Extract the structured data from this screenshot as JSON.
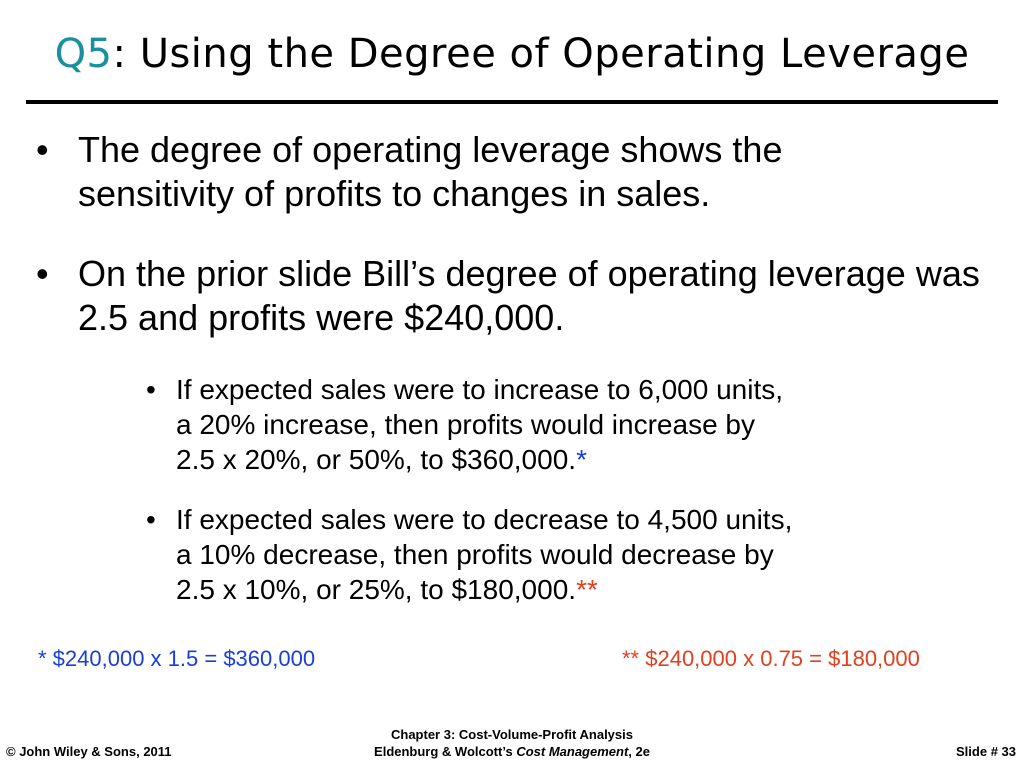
{
  "title": {
    "prefix": "Q5",
    "text": ": Using the Degree of Operating Leverage"
  },
  "bullets": [
    {
      "marker": "•",
      "text": "The degree of operating leverage shows the sensitivity of profits to changes in sales."
    },
    {
      "marker": "•",
      "text": "On the prior slide Bill’s degree of operating leverage was 2.5 and profits were $240,000."
    }
  ],
  "sub_bullets": [
    {
      "marker": "•",
      "line1": "If expected sales were to increase to 6,000 units,",
      "line2": "a 20% increase, then profits would increase by",
      "line3": "2.5 x 20%, or 50%, to $360,000.",
      "asterisk": "*"
    },
    {
      "marker": "•",
      "line1": "If expected sales were to decrease to 4,500 units,",
      "line2": "a 10% decrease, then profits would decrease by",
      "line3": "2.5 x 10%, or 25%, to $180,000.",
      "asterisk": "**"
    }
  ],
  "footnotes": {
    "left": "* $240,000 x 1.5 = $360,000",
    "right": "** $240,000 x 0.75 = $180,000"
  },
  "footer": {
    "copyright": "© John Wiley & Sons, 2011",
    "chapter": "Chapter 3: Cost-Volume-Profit Analysis",
    "book_prefix": "Eldenburg & Wolcott’s ",
    "book_title": "Cost Management",
    "book_suffix": ", 2e",
    "slide_label": "Slide #  33"
  },
  "colors": {
    "title_accent": "#1a8f9f",
    "footnote_blue": "#1a3fd6",
    "footnote_red": "#e0401f"
  }
}
